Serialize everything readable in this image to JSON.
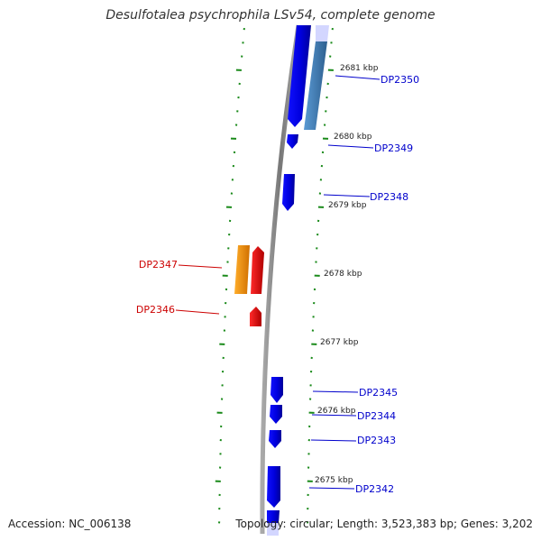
{
  "title": "Desulfotalea psychrophila LSv54, complete genome",
  "accession_text": "Accession: NC_006138",
  "summary_text": "Topology: circular; Length: 3,523,383 bp; Genes: 3,202",
  "colors": {
    "backbone": "#888888",
    "forward_cds": "#0000ee",
    "reverse_cds": "#ee0000",
    "forward_other": "#3f7fbf",
    "reverse_other": "#ff9900",
    "tick": "#1a8a1a",
    "label_forward": "#0000cc",
    "label_reverse": "#cc0000"
  },
  "scale": {
    "unit": "kbp",
    "labels": [
      "2681 kbp",
      "2680 kbp",
      "2679 kbp",
      "2678 kbp",
      "2677 kbp",
      "2676 kbp",
      "2675 kbp"
    ],
    "major_kbp": [
      2681,
      2680,
      2679,
      2678,
      2677,
      2676,
      2675
    ],
    "minor_step_kbp": 0.2
  },
  "genes": [
    {
      "label": "DP2350",
      "strand": "forward"
    },
    {
      "label": "DP2349",
      "strand": "forward"
    },
    {
      "label": "DP2348",
      "strand": "forward"
    },
    {
      "label": "DP2347",
      "strand": "reverse"
    },
    {
      "label": "DP2346",
      "strand": "reverse"
    },
    {
      "label": "DP2345",
      "strand": "forward"
    },
    {
      "label": "DP2344",
      "strand": "forward"
    },
    {
      "label": "DP2343",
      "strand": "forward"
    },
    {
      "label": "DP2342",
      "strand": "forward"
    }
  ]
}
